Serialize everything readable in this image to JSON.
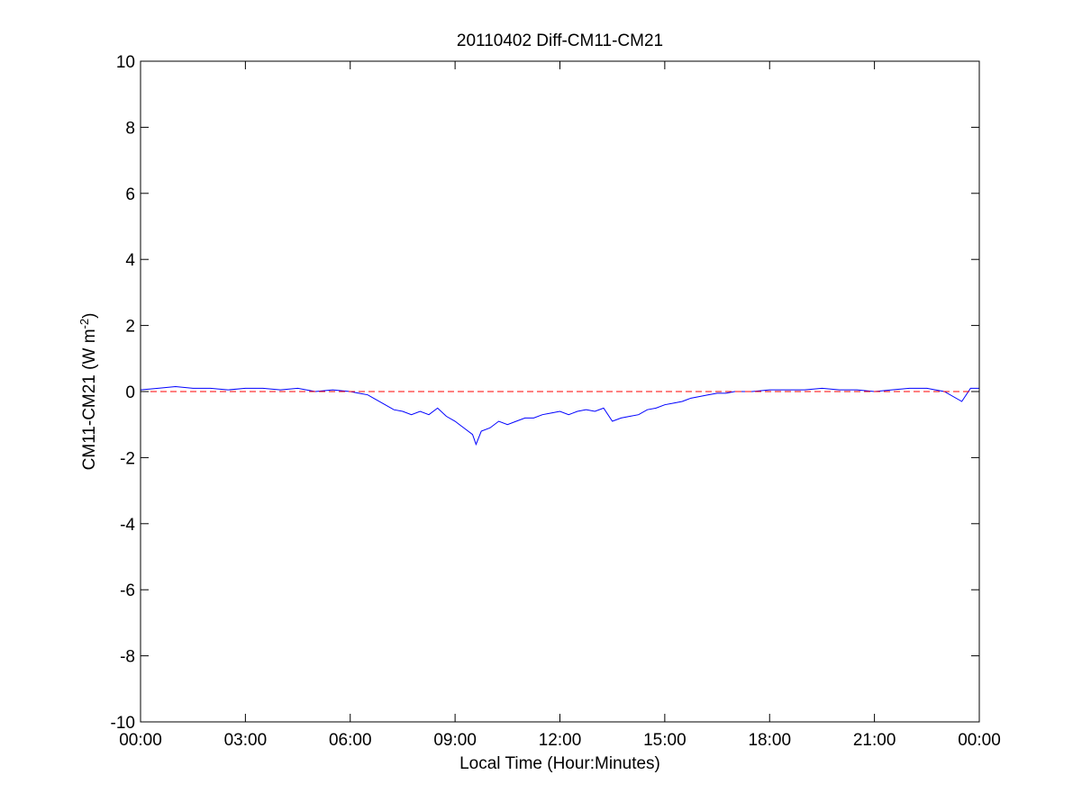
{
  "chart_data": {
    "type": "line",
    "title": "20110402 Diff-CM11-CM21",
    "xlabel": "Local Time (Hour:Minutes)",
    "ylabel_main": "CM11-CM21 (W m",
    "ylabel_sup": "-2",
    "ylabel_tail": ")",
    "xlim": [
      0,
      24
    ],
    "ylim": [
      -10,
      10
    ],
    "x_ticks": [
      {
        "value": 0,
        "label": "00:00"
      },
      {
        "value": 3,
        "label": "03:00"
      },
      {
        "value": 6,
        "label": "06:00"
      },
      {
        "value": 9,
        "label": "09:00"
      },
      {
        "value": 12,
        "label": "12:00"
      },
      {
        "value": 15,
        "label": "15:00"
      },
      {
        "value": 18,
        "label": "18:00"
      },
      {
        "value": 21,
        "label": "21:00"
      },
      {
        "value": 24,
        "label": "00:00"
      }
    ],
    "y_ticks": [
      {
        "value": 10,
        "label": "10"
      },
      {
        "value": 8,
        "label": "8"
      },
      {
        "value": 6,
        "label": "6"
      },
      {
        "value": 4,
        "label": "4"
      },
      {
        "value": 2,
        "label": "2"
      },
      {
        "value": 0,
        "label": "0"
      },
      {
        "value": -2,
        "label": "-2"
      },
      {
        "value": -4,
        "label": "-4"
      },
      {
        "value": -6,
        "label": "-6"
      },
      {
        "value": -8,
        "label": "-8"
      },
      {
        "value": -10,
        "label": "-10"
      }
    ],
    "grid": false,
    "reference_line": {
      "y": 0,
      "color": "#ff0000",
      "style": "dashed"
    },
    "series": [
      {
        "color": "#0000ff",
        "x": [
          0,
          0.5,
          1,
          1.5,
          2,
          2.5,
          3,
          3.5,
          4,
          4.5,
          5,
          5.5,
          6,
          6.25,
          6.5,
          6.75,
          7,
          7.25,
          7.5,
          7.75,
          8,
          8.25,
          8.5,
          8.75,
          9,
          9.25,
          9.5,
          9.6,
          9.75,
          10,
          10.25,
          10.5,
          10.75,
          11,
          11.25,
          11.5,
          11.75,
          12,
          12.25,
          12.5,
          12.75,
          13,
          13.25,
          13.5,
          13.75,
          14,
          14.25,
          14.5,
          14.75,
          15,
          15.25,
          15.5,
          15.75,
          16,
          16.25,
          16.5,
          16.75,
          17,
          17.5,
          18,
          18.5,
          19,
          19.5,
          20,
          20.5,
          21,
          21.5,
          22,
          22.5,
          23,
          23.5,
          23.75,
          24
        ],
        "y": [
          0.05,
          0.1,
          0.15,
          0.1,
          0.1,
          0.05,
          0.1,
          0.1,
          0.05,
          0.1,
          0.0,
          0.05,
          0.0,
          -0.05,
          -0.1,
          -0.25,
          -0.4,
          -0.55,
          -0.6,
          -0.7,
          -0.6,
          -0.7,
          -0.5,
          -0.75,
          -0.9,
          -1.1,
          -1.3,
          -1.6,
          -1.2,
          -1.1,
          -0.9,
          -1.0,
          -0.9,
          -0.8,
          -0.8,
          -0.7,
          -0.65,
          -0.6,
          -0.7,
          -0.6,
          -0.55,
          -0.6,
          -0.5,
          -0.9,
          -0.8,
          -0.75,
          -0.7,
          -0.55,
          -0.5,
          -0.4,
          -0.35,
          -0.3,
          -0.2,
          -0.15,
          -0.1,
          -0.05,
          -0.05,
          0.0,
          0.0,
          0.05,
          0.05,
          0.05,
          0.1,
          0.05,
          0.05,
          0.0,
          0.05,
          0.1,
          0.1,
          0.0,
          -0.3,
          0.1,
          0.1
        ]
      }
    ]
  }
}
